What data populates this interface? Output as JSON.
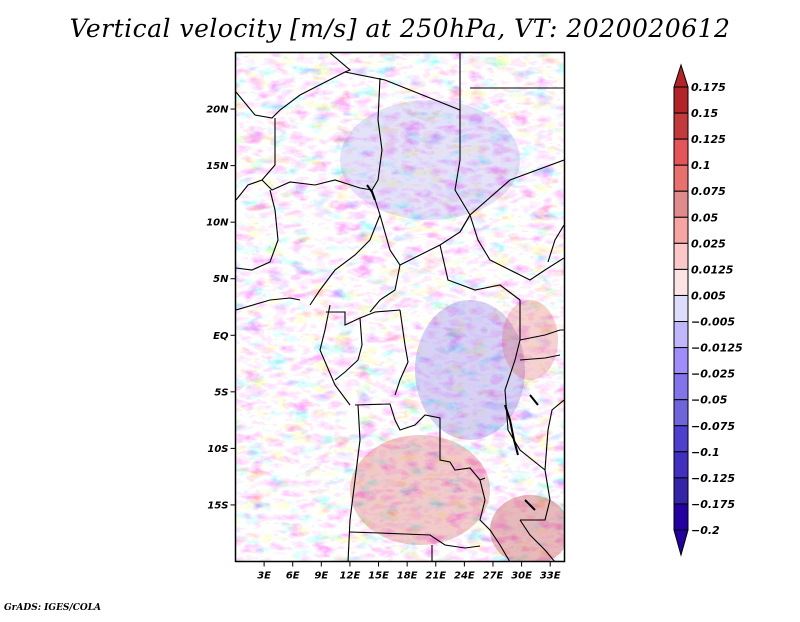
{
  "title": "Vertical velocity [m/s] at 250hPa, VT: 2020020612",
  "credit": "GrADS: IGES/COLA",
  "map": {
    "variable": "Vertical velocity",
    "units": "m/s",
    "level": "250hPa",
    "valid_time": "2020020612",
    "lat_range": [
      -20,
      25
    ],
    "lon_range": [
      0,
      34.5
    ],
    "lat_ticks": [
      {
        "value": 20,
        "label": "20N"
      },
      {
        "value": 15,
        "label": "15N"
      },
      {
        "value": 10,
        "label": "10N"
      },
      {
        "value": 5,
        "label": "5N"
      },
      {
        "value": 0,
        "label": "EQ"
      },
      {
        "value": -5,
        "label": "5S"
      },
      {
        "value": -10,
        "label": "10S"
      },
      {
        "value": -15,
        "label": "15S"
      }
    ],
    "lon_ticks": [
      {
        "value": 3,
        "label": "3E"
      },
      {
        "value": 6,
        "label": "6E"
      },
      {
        "value": 9,
        "label": "9E"
      },
      {
        "value": 12,
        "label": "12E"
      },
      {
        "value": 15,
        "label": "15E"
      },
      {
        "value": 18,
        "label": "18E"
      },
      {
        "value": 21,
        "label": "21E"
      },
      {
        "value": 24,
        "label": "24E"
      },
      {
        "value": 27,
        "label": "27E"
      },
      {
        "value": 30,
        "label": "30E"
      },
      {
        "value": 33,
        "label": "33E"
      }
    ]
  },
  "colorbar": {
    "labels": [
      "0.175",
      "0.15",
      "0.125",
      "0.1",
      "0.075",
      "0.05",
      "0.025",
      "0.0125",
      "0.005",
      "-0.005",
      "-0.0125",
      "-0.025",
      "-0.05",
      "-0.075",
      "-0.1",
      "-0.125",
      "-0.175",
      "-0.2"
    ],
    "colors": [
      "#b22428",
      "#c33a3c",
      "#e35558",
      "#e8706f",
      "#e08c8e",
      "#f7a4a5",
      "#fac8c8",
      "#fde4e4",
      "#ffffff",
      "#dcdcfc",
      "#c0b6fb",
      "#a08cfa",
      "#8474ec",
      "#7064da",
      "#4e40ce",
      "#4130bf",
      "#3324a8",
      "#2400a0"
    ],
    "upper_arrow_color": "#b22428",
    "lower_arrow_color": "#2400a0"
  }
}
